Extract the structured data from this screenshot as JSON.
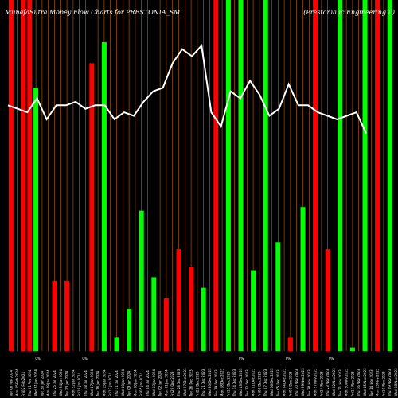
{
  "chart_data": {
    "type": "bar",
    "title": "MunafaSutra  Money Flow  Charts for PRESTONIA_SM",
    "subtitle": "(Prestonia ic Engineering L)",
    "ylim": [
      0,
      100
    ],
    "colors": {
      "background": "#000000",
      "inflow": "#00ff00",
      "outflow": "#ff0000",
      "grid": "#c06000",
      "line": "#ffffff"
    },
    "categories": [
      "Tue 06 Feb 2024",
      "Mon 05 Feb 2024",
      "Fri 02 Feb 2024",
      "Thu 01 Feb 2024",
      "Wed 31 Jan 2024",
      "Tue 30 Jan 2024",
      "Mon 29 Jan 2024",
      "Thu 25 Jan 2024",
      "Wed 24 Jan 2024",
      "Tue 23 Jan 2024",
      "Mon 22 Jan 2024",
      "Fri 19 Jan 2024",
      "Thu 18 Jan 2024",
      "Wed 17 Jan 2024",
      "Tue 16 Jan 2024",
      "Mon 15 Jan 2024",
      "Fri 12 Jan 2024",
      "Thu 11 Jan 2024",
      "Wed 10 Jan 2024",
      "Tue 09 Jan 2024",
      "Mon 08 Jan 2024",
      "Fri 05 Jan 2024",
      "Thu 04 Jan 2024",
      "Wed 03 Jan 2024",
      "Tue 02 Jan 2024",
      "Mon 01 Jan 2024",
      "Fri 29 Dec 2023",
      "Thu 28 Dec 2023",
      "Wed 27 Dec 2023",
      "Tue 26 Dec 2023",
      "Fri 22 Dec 2023",
      "Thu 21 Dec 2023",
      "Wed 20 Dec 2023",
      "Tue 19 Dec 2023",
      "Mon 18 Dec 2023",
      "Fri 15 Dec 2023",
      "Thu 14 Dec 2023",
      "Wed 13 Dec 2023",
      "Tue 12 Dec 2023",
      "Mon 11 Dec 2023",
      "Fri 08 Dec 2023",
      "Thu 07 Dec 2023",
      "Wed 06 Dec 2023",
      "Tue 05 Dec 2023",
      "Mon 04 Dec 2023",
      "Fri 01 Dec 2023",
      "Thu 30 Nov 2023",
      "Wed 29 Nov 2023",
      "Tue 28 Nov 2023",
      "Mon 27 Nov 2023",
      "Fri 24 Nov 2023",
      "Thu 23 Nov 2023",
      "Wed 22 Nov 2023",
      "Tue 21 Nov 2023",
      "Mon 20 Nov 2023",
      "Fri 17 Nov 2023",
      "Thu 16 Nov 2023",
      "Wed 15 Nov 2023",
      "Tue 14 Nov 2023",
      "Mon 13 Nov 2023",
      "Fri 10 Nov 2023",
      "Thu 09 Nov 2023",
      "Wed 08 Nov 2023"
    ],
    "bars": [
      {
        "value": 100,
        "flow": "outflow"
      },
      {
        "value": 0,
        "flow": "none"
      },
      {
        "value": 100,
        "flow": "outflow"
      },
      {
        "value": 100,
        "flow": "outflow"
      },
      {
        "value": 75,
        "flow": "inflow"
      },
      {
        "value": 0,
        "flow": "none"
      },
      {
        "value": 0,
        "flow": "none"
      },
      {
        "value": 20,
        "flow": "outflow"
      },
      {
        "value": 0,
        "flow": "none"
      },
      {
        "value": 20,
        "flow": "outflow"
      },
      {
        "value": 0,
        "flow": "none"
      },
      {
        "value": 0,
        "flow": "none"
      },
      {
        "value": 0,
        "flow": "none"
      },
      {
        "value": 82,
        "flow": "outflow"
      },
      {
        "value": 0,
        "flow": "none"
      },
      {
        "value": 88,
        "flow": "inflow"
      },
      {
        "value": 0,
        "flow": "none"
      },
      {
        "value": 4,
        "flow": "inflow"
      },
      {
        "value": 0,
        "flow": "none"
      },
      {
        "value": 12,
        "flow": "inflow"
      },
      {
        "value": 0,
        "flow": "none"
      },
      {
        "value": 40,
        "flow": "inflow"
      },
      {
        "value": 0,
        "flow": "none"
      },
      {
        "value": 21,
        "flow": "inflow"
      },
      {
        "value": 0,
        "flow": "none"
      },
      {
        "value": 15,
        "flow": "outflow"
      },
      {
        "value": 0,
        "flow": "none"
      },
      {
        "value": 29,
        "flow": "outflow"
      },
      {
        "value": 0,
        "flow": "none"
      },
      {
        "value": 24,
        "flow": "outflow"
      },
      {
        "value": 0,
        "flow": "none"
      },
      {
        "value": 18,
        "flow": "inflow"
      },
      {
        "value": 0,
        "flow": "none"
      },
      {
        "value": 100,
        "flow": "outflow"
      },
      {
        "value": 0,
        "flow": "none"
      },
      {
        "value": 100,
        "flow": "inflow"
      },
      {
        "value": 0,
        "flow": "none"
      },
      {
        "value": 100,
        "flow": "inflow"
      },
      {
        "value": 0,
        "flow": "none"
      },
      {
        "value": 23,
        "flow": "inflow"
      },
      {
        "value": 0,
        "flow": "none"
      },
      {
        "value": 100,
        "flow": "inflow"
      },
      {
        "value": 0,
        "flow": "none"
      },
      {
        "value": 31,
        "flow": "inflow"
      },
      {
        "value": 0,
        "flow": "none"
      },
      {
        "value": 4,
        "flow": "outflow"
      },
      {
        "value": 0,
        "flow": "none"
      },
      {
        "value": 41,
        "flow": "inflow"
      },
      {
        "value": 0,
        "flow": "none"
      },
      {
        "value": 100,
        "flow": "outflow"
      },
      {
        "value": 0,
        "flow": "none"
      },
      {
        "value": 29,
        "flow": "outflow"
      },
      {
        "value": 0,
        "flow": "none"
      },
      {
        "value": 100,
        "flow": "inflow"
      },
      {
        "value": 0,
        "flow": "none"
      },
      {
        "value": 1,
        "flow": "inflow"
      },
      {
        "value": 0,
        "flow": "none"
      },
      {
        "value": 100,
        "flow": "inflow"
      },
      {
        "value": 0,
        "flow": "none"
      },
      {
        "value": 100,
        "flow": "outflow"
      },
      {
        "value": 0,
        "flow": "none"
      },
      {
        "value": 100,
        "flow": "inflow"
      },
      {
        "value": 0,
        "flow": "none"
      }
    ],
    "line": [
      70,
      69,
      68,
      72,
      66,
      70,
      70,
      71,
      69,
      70,
      70,
      66,
      68,
      67,
      71,
      74,
      75,
      82,
      86,
      84,
      87,
      68,
      64,
      74,
      72,
      77,
      73,
      67,
      69,
      76,
      70,
      70,
      68,
      67,
      66,
      67,
      68,
      62
    ],
    "percent_labels": [
      {
        "index": 7,
        "text": "0%"
      },
      {
        "index": 19,
        "text": "0%"
      },
      {
        "index": 59,
        "text": "0%"
      },
      {
        "index": 71,
        "text": "0%"
      },
      {
        "index": 82,
        "text": "0%"
      }
    ]
  }
}
